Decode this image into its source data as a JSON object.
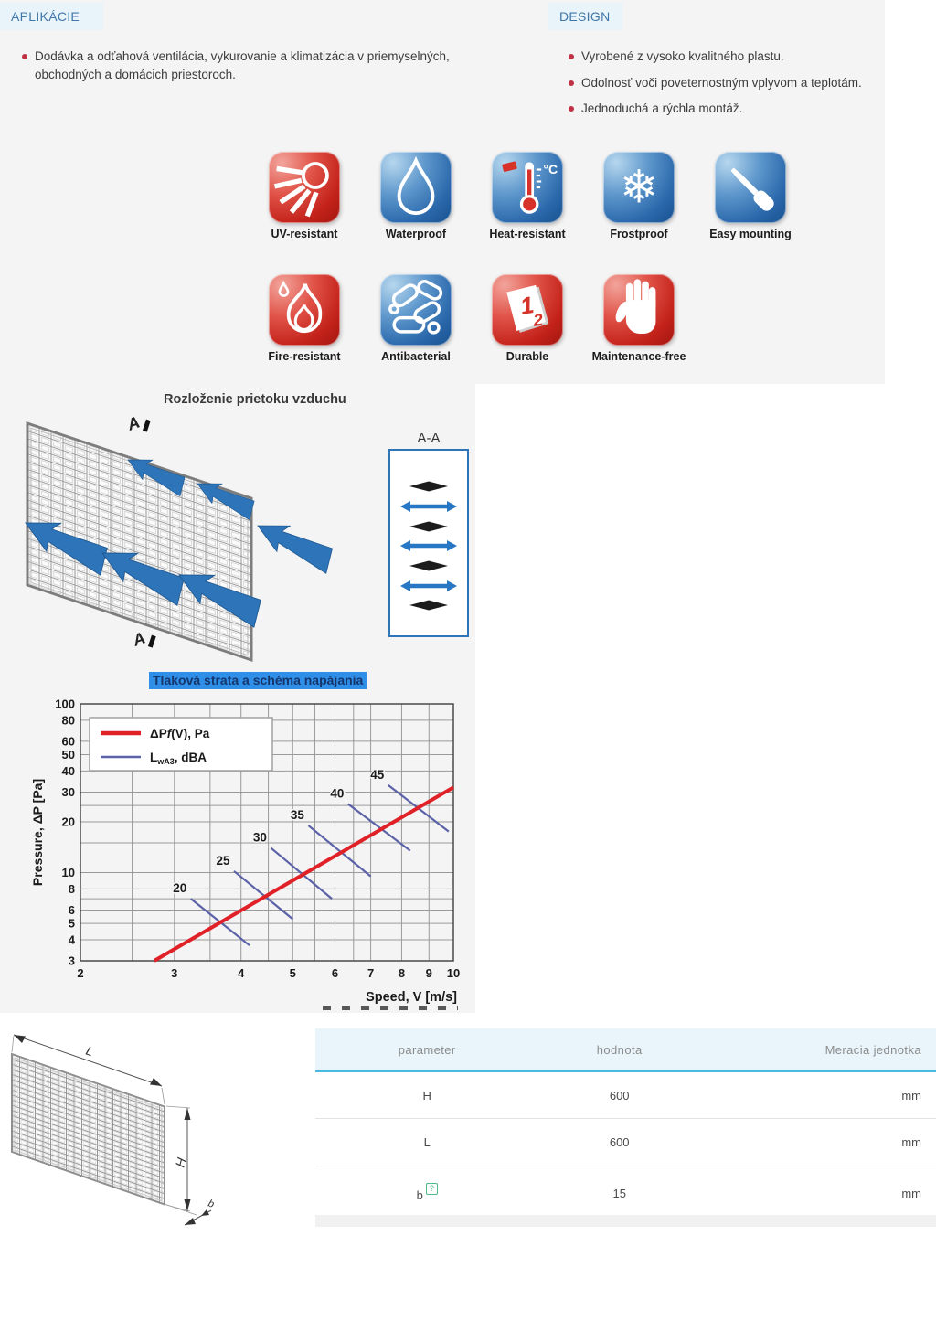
{
  "applications": {
    "title": "APLIKÁCIE",
    "items": [
      "Dodávka a odťahová ventilácia, vykurovanie a klimatizácia v priemyselných, obchodných a domácich priestoroch."
    ]
  },
  "design": {
    "title": "DESIGN",
    "items": [
      "Vyrobené z vysoko kvalitného plastu.",
      "Odolnosť voči poveternostným vplyvom a teplotám.",
      "Jednoduchá a rýchla montáž."
    ]
  },
  "features": {
    "row1": [
      {
        "icon": "uv-sun-icon",
        "label": "UV-resistant",
        "color": "red"
      },
      {
        "icon": "water-drop-icon",
        "label": "Waterproof",
        "color": "blue"
      },
      {
        "icon": "thermometer-icon",
        "label": "Heat-resistant",
        "color": "blue"
      },
      {
        "icon": "snowflake-icon",
        "label": "Frostproof",
        "color": "blue"
      },
      {
        "icon": "screwdriver-icon",
        "label": "Easy mounting",
        "color": "blue"
      }
    ],
    "row2": [
      {
        "icon": "flame-icon",
        "label": "Fire-resistant",
        "color": "red"
      },
      {
        "icon": "bacteria-icon",
        "label": "Antibacterial",
        "color": "blue"
      },
      {
        "icon": "calendar-icon",
        "label": "Durable",
        "color": "red"
      },
      {
        "icon": "hand-icon",
        "label": "Maintenance-free",
        "color": "red"
      }
    ]
  },
  "flow_diagram": {
    "title": "Rozloženie prietoku vzduchu",
    "section_mark": "A",
    "detail_label": "A-A"
  },
  "chart_data": {
    "type": "line",
    "title": "Tlaková strata a schéma napájania",
    "xlabel": "Speed, V [m/s]",
    "ylabel": "Pressure, ΔP [Pa]",
    "x_scale": "log",
    "y_scale": "log",
    "xlim": [
      2,
      10
    ],
    "ylim": [
      3,
      100
    ],
    "x_ticks": [
      2,
      3,
      4,
      5,
      6,
      7,
      8,
      9,
      10
    ],
    "y_ticks": [
      3,
      4,
      5,
      6,
      8,
      10,
      20,
      30,
      40,
      50,
      60,
      80,
      100
    ],
    "x_gridlines": [
      2,
      2.5,
      3,
      3.5,
      4,
      4.5,
      5,
      5.5,
      6,
      6.5,
      7,
      8,
      9,
      10
    ],
    "y_gridlines": [
      3,
      4,
      5,
      6,
      7,
      8,
      10,
      15,
      20,
      25,
      30,
      40,
      50,
      60,
      80,
      100
    ],
    "grid": true,
    "legend_position": "top-left",
    "series": [
      {
        "name": "ΔPf(V), Pa",
        "role": "pressure-curve",
        "color": "#e02128",
        "width": 4,
        "points": [
          [
            2.75,
            3
          ],
          [
            10,
            32
          ]
        ]
      },
      {
        "name": "LwA3, dBA",
        "role": "noise-level-lines",
        "color": "#5b62a8",
        "width": 2.2,
        "lines": [
          {
            "label": "20",
            "points": [
              [
                3.22,
                7.0
              ],
              [
                4.15,
                3.7
              ]
            ]
          },
          {
            "label": "25",
            "points": [
              [
                3.88,
                10.2
              ],
              [
                5.0,
                5.3
              ]
            ]
          },
          {
            "label": "30",
            "points": [
              [
                4.55,
                14.0
              ],
              [
                5.92,
                7.0
              ]
            ]
          },
          {
            "label": "35",
            "points": [
              [
                5.35,
                19.0
              ],
              [
                7.0,
                9.5
              ]
            ]
          },
          {
            "label": "40",
            "points": [
              [
                6.35,
                25.5
              ],
              [
                8.3,
                13.5
              ]
            ]
          },
          {
            "label": "45",
            "points": [
              [
                7.55,
                33.0
              ],
              [
                9.8,
                17.5
              ]
            ]
          }
        ]
      }
    ],
    "legend": [
      {
        "color": "#e02128",
        "width": 4.5,
        "parts": [
          [
            "ΔP",
            "n"
          ],
          [
            "f",
            "i"
          ],
          [
            "(V), Pa",
            "n"
          ]
        ]
      },
      {
        "color": "#5b62a8",
        "width": 2.5,
        "parts": [
          [
            "L",
            "n"
          ],
          [
            "wA3",
            "sub"
          ],
          [
            ", dBA",
            "n"
          ]
        ]
      }
    ]
  },
  "dimensions_drawing": {
    "labels": {
      "length": "L",
      "height": "H",
      "thickness": "b"
    }
  },
  "table": {
    "headers": [
      "parameter",
      "hodnota",
      "Meracia jednotka"
    ],
    "rows": [
      {
        "parameter": "H",
        "value": "600",
        "unit": "mm"
      },
      {
        "parameter": "L",
        "value": "600",
        "unit": "mm"
      },
      {
        "parameter": "b",
        "tooltip": "?",
        "value": "15",
        "unit": "mm"
      }
    ]
  },
  "colors": {
    "panel_gray": "#f4f4f4",
    "header_highlight": "#e8f4fa",
    "header_text": "#4077a8",
    "bullet": "#bf3145",
    "title_highlight_bg": "#2f8fe8",
    "title_highlight_text": "#15356b",
    "arrow_blue": "#2e74b8",
    "table_header_bg": "#e9f5fb",
    "table_header_underline": "#49bade",
    "tooltip_green": "#4fbc87",
    "badge_red": "#c3221a",
    "badge_blue": "#2a68ab"
  }
}
